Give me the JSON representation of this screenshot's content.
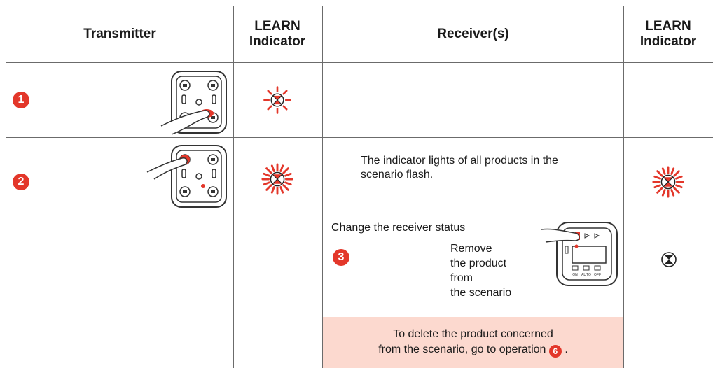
{
  "header": {
    "columns": [
      "Transmitter",
      "LEARN Indicator",
      "Receiver(s)",
      "LEARN Indicator"
    ]
  },
  "rows": [
    {
      "step": "1"
    },
    {
      "step": "2",
      "receiver_text": "The indicator lights of all products in the scenario flash."
    },
    {
      "receiver_title": "Change the receiver status",
      "step": "3",
      "action_lines": [
        "Remove",
        "the product",
        "from",
        "the scenario"
      ],
      "device_labels": [
        "ON",
        "AUTO",
        "OFF"
      ],
      "note": {
        "lines": [
          "To delete the product concerned",
          "from the scenario, go to operation"
        ],
        "step": "6",
        "end": "."
      }
    }
  ]
}
